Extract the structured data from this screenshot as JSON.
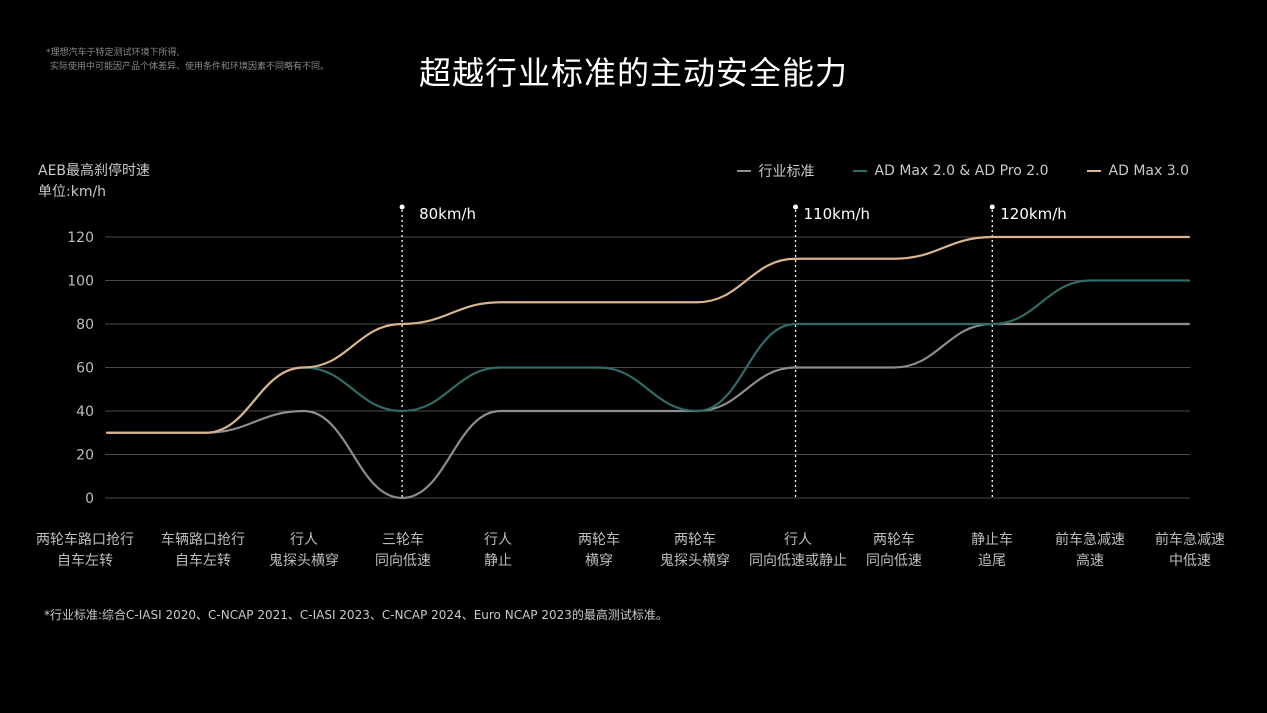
{
  "disclaimer": {
    "line1": "*理想汽车于特定测试环境下所得,",
    "line2": "实际使用中可能因产品个体差异、使用条件和环境因素不同略有不同。"
  },
  "title": "超越行业标准的主动安全能力",
  "footnote": "*行业标准:综合C-IASI 2020、C-NCAP 2021、C-IASI 2023、C-NCAP 2024、Euro NCAP 2023的最高测试标准。",
  "chart_data": {
    "type": "line",
    "ylabel_line1": "AEB最高刹停时速",
    "ylabel_line2": "单位:km/h",
    "ylim": [
      0,
      120
    ],
    "yticks": [
      0,
      20,
      40,
      60,
      80,
      100,
      120
    ],
    "grid": true,
    "legend_position": "top-right",
    "categories": [
      [
        "两轮车路口抢行",
        "自车左转"
      ],
      [
        "车辆路口抢行",
        "自车左转"
      ],
      [
        "行人",
        "鬼探头横穿"
      ],
      [
        "三轮车",
        "同向低速"
      ],
      [
        "行人",
        "静止"
      ],
      [
        "两轮车",
        "横穿"
      ],
      [
        "两轮车",
        "鬼探头横穿"
      ],
      [
        "行人",
        "同向低速或静止"
      ],
      [
        "两轮车",
        "同向低速"
      ],
      [
        "静止车",
        "追尾"
      ],
      [
        "前车急减速",
        "高速"
      ],
      [
        "前车急减速",
        "中低速"
      ]
    ],
    "series": [
      {
        "name": "行业标准",
        "color": "#8c8c8c",
        "values": [
          30,
          30,
          40,
          0,
          40,
          40,
          40,
          60,
          60,
          80,
          80,
          80
        ]
      },
      {
        "name": "AD Max 2.0 & AD Pro 2.0",
        "color": "#2f6b68",
        "values": [
          30,
          30,
          60,
          40,
          60,
          60,
          40,
          80,
          80,
          80,
          100,
          100
        ]
      },
      {
        "name": "AD Max 3.0",
        "color": "#d9b48c",
        "values": [
          30,
          30,
          60,
          80,
          90,
          90,
          90,
          110,
          110,
          120,
          120,
          120
        ]
      }
    ],
    "annotations": [
      {
        "category_index": 3,
        "label": "80km/h"
      },
      {
        "category_index": 7,
        "label": "110km/h"
      },
      {
        "category_index": 9,
        "label": "120km/h"
      }
    ]
  }
}
